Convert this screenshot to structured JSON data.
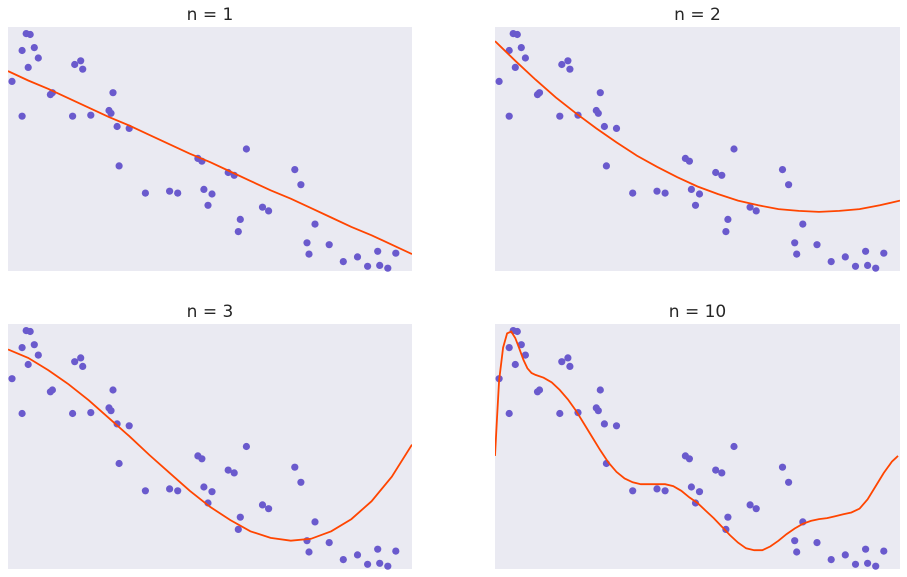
{
  "colors": {
    "background": "#eaeaf2",
    "points": "#6a5acd",
    "fit_line": "#ff4500"
  },
  "chart_data": [
    {
      "type": "scatter",
      "title": "n = 1",
      "degree": 1,
      "xlim": [
        0,
        10
      ],
      "ylim": [
        -1.4,
        1.2
      ],
      "grid": false,
      "axes_visible": false,
      "points": {
        "x": [
          0.1,
          0.35,
          0.35,
          0.45,
          0.5,
          0.55,
          0.65,
          0.75,
          1.05,
          1.1,
          1.6,
          1.65,
          1.8,
          1.85,
          2.05,
          2.5,
          2.55,
          2.6,
          2.7,
          2.75,
          3.0,
          3.4,
          4.0,
          4.2,
          4.7,
          4.8,
          4.85,
          4.95,
          5.05,
          5.45,
          5.6,
          5.7,
          5.75,
          5.9,
          6.3,
          6.45,
          7.1,
          7.25,
          7.4,
          7.45,
          7.6,
          7.95,
          8.3,
          8.65,
          8.9,
          9.15,
          9.2,
          9.4,
          9.6
        ],
        "y": [
          0.62,
          0.95,
          0.25,
          1.13,
          0.77,
          1.12,
          0.98,
          0.87,
          0.48,
          0.5,
          0.25,
          0.8,
          0.84,
          0.75,
          0.26,
          0.31,
          0.28,
          0.5,
          0.14,
          -0.28,
          0.12,
          -0.57,
          -0.55,
          -0.57,
          -0.2,
          -0.23,
          -0.53,
          -0.7,
          -0.58,
          -0.35,
          -0.38,
          -0.98,
          -0.85,
          -0.1,
          -0.72,
          -0.76,
          -0.32,
          -0.48,
          -1.1,
          -1.22,
          -0.9,
          -1.12,
          -1.3,
          -1.25,
          -1.35,
          -1.19,
          -1.34,
          -1.37,
          -1.21
        ]
      },
      "fit": {
        "x": [
          0,
          0.5,
          1,
          1.5,
          2,
          2.5,
          3,
          3.5,
          4,
          4.5,
          5,
          5.5,
          6,
          6.5,
          7,
          7.5,
          8,
          8.5,
          9,
          9.5,
          10
        ],
        "y": [
          0.73,
          0.63,
          0.54,
          0.44,
          0.34,
          0.24,
          0.15,
          0.05,
          -0.05,
          -0.15,
          -0.24,
          -0.34,
          -0.44,
          -0.54,
          -0.63,
          -0.73,
          -0.83,
          -0.93,
          -1.02,
          -1.12,
          -1.22
        ]
      }
    },
    {
      "type": "scatter",
      "title": "n = 2",
      "degree": 2,
      "xlim": [
        0,
        10
      ],
      "ylim": [
        -1.4,
        1.2
      ],
      "grid": false,
      "axes_visible": false,
      "points": {
        "x": [
          0.1,
          0.35,
          0.35,
          0.45,
          0.5,
          0.55,
          0.65,
          0.75,
          1.05,
          1.1,
          1.6,
          1.65,
          1.8,
          1.85,
          2.05,
          2.5,
          2.55,
          2.6,
          2.7,
          2.75,
          3.0,
          3.4,
          4.0,
          4.2,
          4.7,
          4.8,
          4.85,
          4.95,
          5.05,
          5.45,
          5.6,
          5.7,
          5.75,
          5.9,
          6.3,
          6.45,
          7.1,
          7.25,
          7.4,
          7.45,
          7.6,
          7.95,
          8.3,
          8.65,
          8.9,
          9.15,
          9.2,
          9.4,
          9.6
        ],
        "y": [
          0.62,
          0.95,
          0.25,
          1.13,
          0.77,
          1.12,
          0.98,
          0.87,
          0.48,
          0.5,
          0.25,
          0.8,
          0.84,
          0.75,
          0.26,
          0.31,
          0.28,
          0.5,
          0.14,
          -0.28,
          0.12,
          -0.57,
          -0.55,
          -0.57,
          -0.2,
          -0.23,
          -0.53,
          -0.7,
          -0.58,
          -0.35,
          -0.38,
          -0.98,
          -0.85,
          -0.1,
          -0.72,
          -0.76,
          -0.32,
          -0.48,
          -1.1,
          -1.22,
          -0.9,
          -1.12,
          -1.3,
          -1.25,
          -1.35,
          -1.19,
          -1.34,
          -1.37,
          -1.21
        ]
      },
      "fit": {
        "x": [
          0,
          0.5,
          1,
          1.5,
          2,
          2.5,
          3,
          3.5,
          4,
          4.5,
          5,
          5.5,
          6,
          6.5,
          7,
          7.5,
          8,
          8.5,
          9,
          9.5,
          10
        ],
        "y": [
          1.05,
          0.84,
          0.64,
          0.45,
          0.28,
          0.12,
          -0.03,
          -0.17,
          -0.29,
          -0.4,
          -0.5,
          -0.58,
          -0.65,
          -0.7,
          -0.74,
          -0.76,
          -0.77,
          -0.76,
          -0.74,
          -0.7,
          -0.65
        ]
      }
    },
    {
      "type": "scatter",
      "title": "n = 3",
      "degree": 3,
      "xlim": [
        0,
        10
      ],
      "ylim": [
        -1.4,
        1.2
      ],
      "grid": false,
      "axes_visible": false,
      "points": {
        "x": [
          0.1,
          0.35,
          0.35,
          0.45,
          0.5,
          0.55,
          0.65,
          0.75,
          1.05,
          1.1,
          1.6,
          1.65,
          1.8,
          1.85,
          2.05,
          2.5,
          2.55,
          2.6,
          2.7,
          2.75,
          3.0,
          3.4,
          4.0,
          4.2,
          4.7,
          4.8,
          4.85,
          4.95,
          5.05,
          5.45,
          5.6,
          5.7,
          5.75,
          5.9,
          6.3,
          6.45,
          7.1,
          7.25,
          7.4,
          7.45,
          7.6,
          7.95,
          8.3,
          8.65,
          8.9,
          9.15,
          9.2,
          9.4,
          9.6
        ],
        "y": [
          0.62,
          0.95,
          0.25,
          1.13,
          0.77,
          1.12,
          0.98,
          0.87,
          0.48,
          0.5,
          0.25,
          0.8,
          0.84,
          0.75,
          0.26,
          0.31,
          0.28,
          0.5,
          0.14,
          -0.28,
          0.12,
          -0.57,
          -0.55,
          -0.57,
          -0.2,
          -0.23,
          -0.53,
          -0.7,
          -0.58,
          -0.35,
          -0.38,
          -0.98,
          -0.85,
          -0.1,
          -0.72,
          -0.76,
          -0.32,
          -0.48,
          -1.1,
          -1.22,
          -0.9,
          -1.12,
          -1.3,
          -1.25,
          -1.35,
          -1.19,
          -1.34,
          -1.37,
          -1.21
        ]
      },
      "fit": {
        "x": [
          0,
          0.5,
          1,
          1.5,
          2,
          2.5,
          3,
          3.5,
          4,
          4.5,
          5,
          5.5,
          6,
          6.5,
          7,
          7.5,
          8,
          8.5,
          9,
          9.5,
          10
        ],
        "y": [
          0.93,
          0.84,
          0.71,
          0.56,
          0.39,
          0.2,
          0.01,
          -0.19,
          -0.38,
          -0.57,
          -0.74,
          -0.88,
          -1.0,
          -1.07,
          -1.1,
          -1.08,
          -1.0,
          -0.87,
          -0.68,
          -0.42,
          -0.08
        ]
      }
    },
    {
      "type": "scatter",
      "title": "n = 10",
      "degree": 10,
      "xlim": [
        0,
        10
      ],
      "ylim": [
        -1.4,
        1.2
      ],
      "grid": false,
      "axes_visible": false,
      "points": {
        "x": [
          0.1,
          0.35,
          0.35,
          0.45,
          0.5,
          0.55,
          0.65,
          0.75,
          1.05,
          1.1,
          1.6,
          1.65,
          1.8,
          1.85,
          2.05,
          2.5,
          2.55,
          2.6,
          2.7,
          2.75,
          3.0,
          3.4,
          4.0,
          4.2,
          4.7,
          4.8,
          4.85,
          4.95,
          5.05,
          5.45,
          5.6,
          5.7,
          5.75,
          5.9,
          6.3,
          6.45,
          7.1,
          7.25,
          7.4,
          7.45,
          7.6,
          7.95,
          8.3,
          8.65,
          8.9,
          9.15,
          9.2,
          9.4,
          9.6
        ],
        "y": [
          0.62,
          0.95,
          0.25,
          1.13,
          0.77,
          1.12,
          0.98,
          0.87,
          0.48,
          0.5,
          0.25,
          0.8,
          0.84,
          0.75,
          0.26,
          0.31,
          0.28,
          0.5,
          0.14,
          -0.28,
          0.12,
          -0.57,
          -0.55,
          -0.57,
          -0.2,
          -0.23,
          -0.53,
          -0.7,
          -0.58,
          -0.35,
          -0.38,
          -0.98,
          -0.85,
          -0.1,
          -0.72,
          -0.76,
          -0.32,
          -0.48,
          -1.1,
          -1.22,
          -0.9,
          -1.12,
          -1.3,
          -1.25,
          -1.35,
          -1.19,
          -1.34,
          -1.37,
          -1.21
        ]
      },
      "fit": {
        "x": [
          0,
          0.05,
          0.1,
          0.2,
          0.3,
          0.4,
          0.5,
          0.6,
          0.7,
          0.8,
          0.9,
          1.0,
          1.2,
          1.4,
          1.6,
          1.8,
          2.0,
          2.2,
          2.4,
          2.6,
          2.8,
          3.0,
          3.2,
          3.4,
          3.6,
          3.8,
          4.0,
          4.2,
          4.4,
          4.6,
          4.8,
          5.0,
          5.2,
          5.4,
          5.6,
          5.8,
          6.0,
          6.2,
          6.4,
          6.6,
          6.8,
          7.0,
          7.2,
          7.4,
          7.6,
          7.8,
          8.0,
          8.2,
          8.4,
          8.6,
          8.8,
          9.0,
          9.2,
          9.4,
          9.6,
          9.8,
          9.9,
          9.95
        ],
        "y": [
          -0.2,
          0.2,
          0.6,
          0.95,
          1.1,
          1.12,
          1.05,
          0.94,
          0.82,
          0.73,
          0.68,
          0.66,
          0.63,
          0.58,
          0.5,
          0.4,
          0.28,
          0.14,
          0.0,
          -0.14,
          -0.27,
          -0.37,
          -0.44,
          -0.48,
          -0.5,
          -0.5,
          -0.5,
          -0.5,
          -0.52,
          -0.57,
          -0.64,
          -0.7,
          -0.78,
          -0.86,
          -0.95,
          -1.04,
          -1.12,
          -1.18,
          -1.2,
          -1.2,
          -1.16,
          -1.1,
          -1.03,
          -0.97,
          -0.92,
          -0.89,
          -0.87,
          -0.86,
          -0.84,
          -0.82,
          -0.8,
          -0.76,
          -0.66,
          -0.52,
          -0.38,
          -0.26,
          -0.22,
          -0.2
        ]
      }
    }
  ]
}
